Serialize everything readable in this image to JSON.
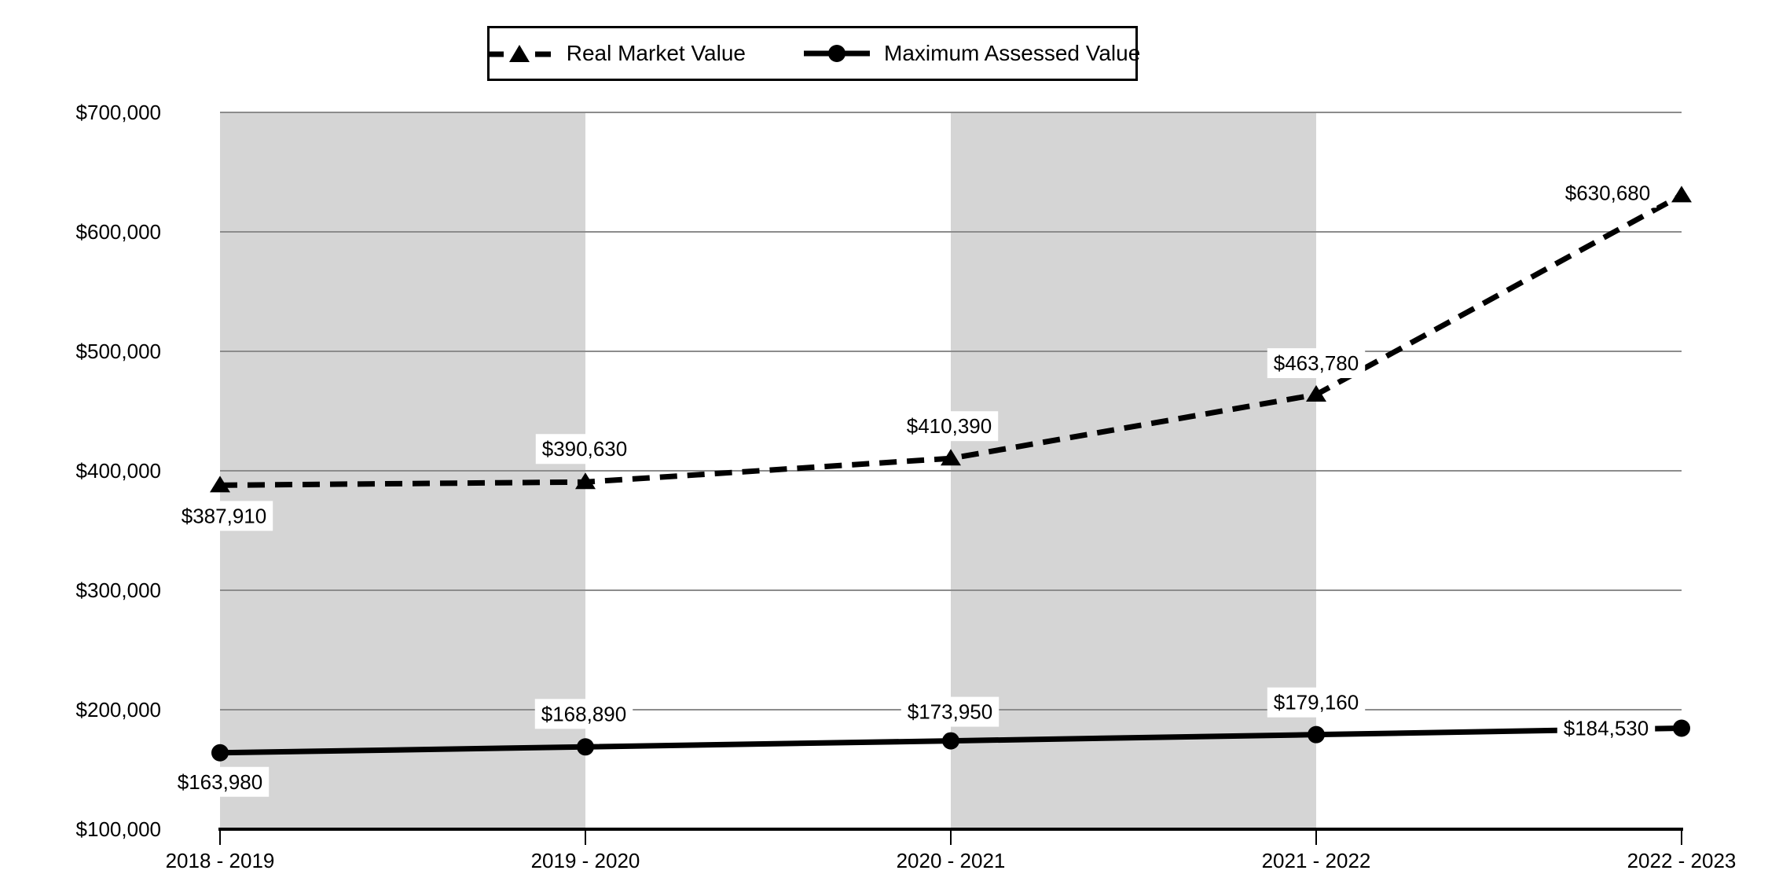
{
  "chart_data": {
    "type": "line",
    "title": "",
    "categories": [
      "2018 - 2019",
      "2019 - 2020",
      "2020 - 2021",
      "2021 - 2022",
      "2022 - 2023"
    ],
    "series": [
      {
        "name": "Real Market Value",
        "style": "dashed",
        "marker": "triangle",
        "values": [
          387910,
          390630,
          410390,
          463780,
          630680
        ],
        "labels": [
          "$387,910",
          "$390,630",
          "$410,390",
          "$463,780",
          "$630,680"
        ],
        "label_offsets": [
          [
            5,
            39
          ],
          [
            -1,
            -42
          ],
          [
            -2,
            -41
          ],
          [
            0,
            -40
          ],
          [
            -94,
            -3
          ]
        ]
      },
      {
        "name": "Maximum Assessed Value",
        "style": "solid",
        "marker": "circle",
        "values": [
          163980,
          168890,
          173950,
          179160,
          184530
        ],
        "labels": [
          "$163,980",
          "$168,890",
          "$173,950",
          "$179,160",
          "$184,530"
        ],
        "label_offsets": [
          [
            0,
            37
          ],
          [
            -2,
            -42
          ],
          [
            -1,
            -37
          ],
          [
            0,
            -41
          ],
          [
            -96,
            0
          ]
        ]
      }
    ],
    "y_axis": {
      "min": 100000,
      "max": 700000,
      "step": 100000,
      "tick_labels": [
        "$100,000",
        "$200,000",
        "$300,000",
        "$400,000",
        "$500,000",
        "$600,000",
        "$700,000"
      ]
    },
    "x_axis": {
      "tick_labels": [
        "2018 - 2019",
        "2019 - 2020",
        "2020 - 2021",
        "2021 - 2022",
        "2022 - 2023"
      ]
    },
    "shaded_band_pairs": [
      [
        0,
        1
      ],
      [
        2,
        3
      ]
    ],
    "legend": {
      "position": "top",
      "entries": [
        "Real Market Value",
        "Maximum Assessed Value"
      ]
    },
    "grid": "horizontal-only",
    "colors": {
      "series": "#000000",
      "band": "#d5d5d5",
      "gridline": "#8c8c8c",
      "axis": "#000000",
      "label_bg": "#ffffff",
      "text": "#000000",
      "background": "#ffffff"
    }
  }
}
